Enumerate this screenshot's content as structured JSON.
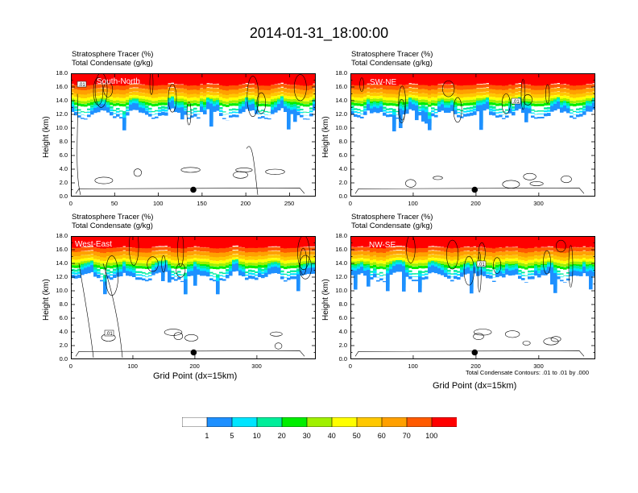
{
  "title": "2014-01-31_18:00:00",
  "colors": {
    "levels": [
      "#ffffff",
      "#1e90ff",
      "#00e5ff",
      "#00ee9a",
      "#00ee00",
      "#a0f000",
      "#ffff00",
      "#ffc800",
      "#ffa000",
      "#ff5a00",
      "#ff0000"
    ]
  },
  "colorbar_labels": [
    "1",
    "5",
    "10",
    "20",
    "30",
    "40",
    "50",
    "60",
    "70",
    "100"
  ],
  "panel_title_line1": "Stratosphere Tracer   (%)",
  "panel_title_line2": "Total Condensate   (g/kg)",
  "y_axis_label": "Height (km)",
  "x_axis_label": "Grid Point (dx=15km)",
  "footnote": "Total Condensate Contours: .01 to .01 by .000",
  "contour_label": ".01",
  "chart_data": [
    {
      "type": "heatmap",
      "region": "South-North",
      "ylim": [
        0,
        18
      ],
      "xlim": [
        0,
        280
      ],
      "y_ticks": [
        "0.0",
        "2.0",
        "4.0",
        "6.0",
        "8.0",
        "10.0",
        "12.0",
        "14.0",
        "16.0",
        "18.0"
      ],
      "x_ticks": [
        {
          "value": 0,
          "label": "0"
        },
        {
          "value": 50,
          "label": "50"
        },
        {
          "value": 100,
          "label": "100"
        },
        {
          "value": 150,
          "label": "150"
        },
        {
          "value": 200,
          "label": "200"
        },
        {
          "value": 250,
          "label": "250"
        }
      ],
      "marker_x": 140,
      "marker_y": 1.0
    },
    {
      "type": "heatmap",
      "region": "SW-NE",
      "ylim": [
        0,
        18
      ],
      "xlim": [
        0,
        390
      ],
      "y_ticks": [
        "0.0",
        "2.0",
        "4.0",
        "6.0",
        "8.0",
        "10.0",
        "12.0",
        "14.0",
        "16.0",
        "18.0"
      ],
      "x_ticks": [
        {
          "value": 0,
          "label": "0"
        },
        {
          "value": 100,
          "label": "100"
        },
        {
          "value": 200,
          "label": "200"
        },
        {
          "value": 300,
          "label": "300"
        }
      ],
      "marker_x": 198,
      "marker_y": 1.0
    },
    {
      "type": "heatmap",
      "region": "West-East",
      "ylim": [
        0,
        18
      ],
      "xlim": [
        0,
        395
      ],
      "y_ticks": [
        "0.0",
        "2.0",
        "4.0",
        "6.0",
        "8.0",
        "10.0",
        "12.0",
        "14.0",
        "16.0",
        "18.0"
      ],
      "x_ticks": [
        {
          "value": 0,
          "label": "0"
        },
        {
          "value": 100,
          "label": "100"
        },
        {
          "value": 200,
          "label": "200"
        },
        {
          "value": 300,
          "label": "300"
        }
      ],
      "marker_x": 198,
      "marker_y": 1.0
    },
    {
      "type": "heatmap",
      "region": "NW-SE",
      "ylim": [
        0,
        18
      ],
      "xlim": [
        0,
        390
      ],
      "y_ticks": [
        "0.0",
        "2.0",
        "4.0",
        "6.0",
        "8.0",
        "10.0",
        "12.0",
        "14.0",
        "16.0",
        "18.0"
      ],
      "x_ticks": [
        {
          "value": 0,
          "label": "0"
        },
        {
          "value": 100,
          "label": "100"
        },
        {
          "value": 200,
          "label": "200"
        },
        {
          "value": 300,
          "label": "300"
        }
      ],
      "marker_x": 198,
      "marker_y": 1.0
    }
  ]
}
